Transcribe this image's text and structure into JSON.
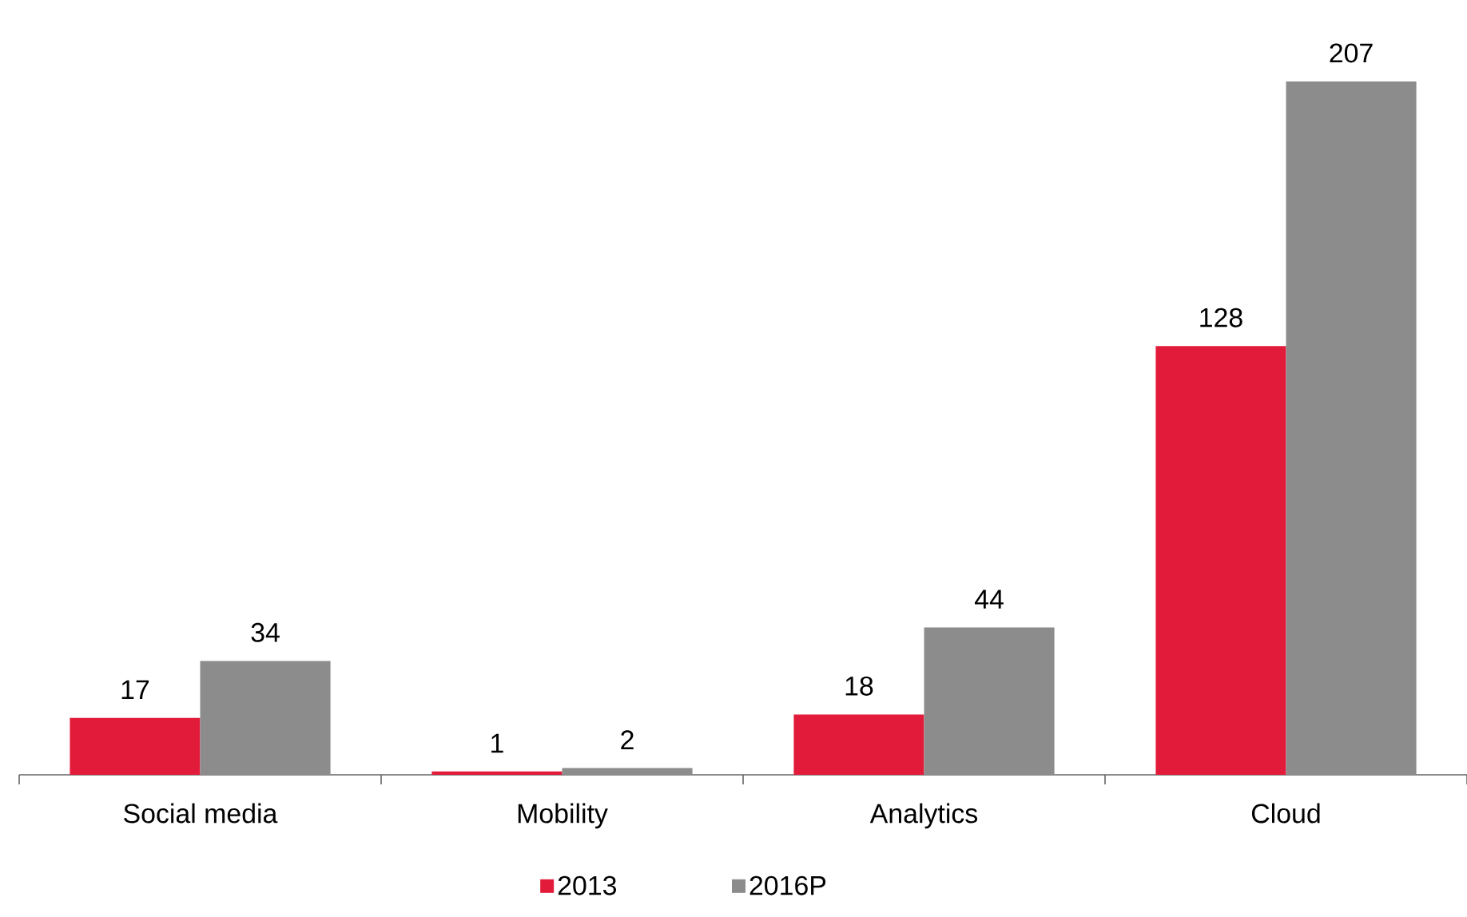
{
  "chart_data": {
    "type": "bar",
    "categories": [
      "Social media",
      "Mobility",
      "Analytics",
      "Cloud"
    ],
    "series": [
      {
        "name": "2013",
        "color": "#e31b3b",
        "values": [
          17,
          1,
          18,
          128
        ]
      },
      {
        "name": "2016P",
        "color": "#8c8c8c",
        "values": [
          34,
          2,
          44,
          207
        ]
      }
    ],
    "data_labels": true,
    "legend": "bottom"
  }
}
